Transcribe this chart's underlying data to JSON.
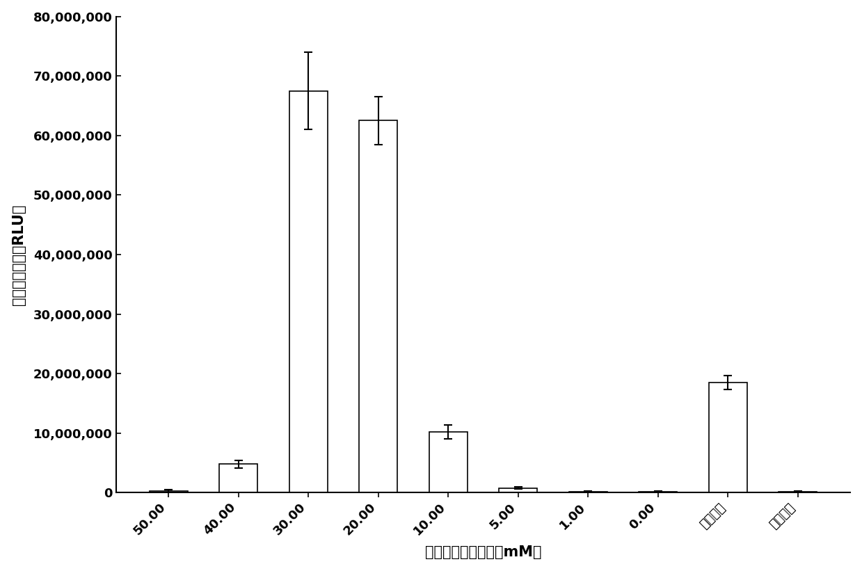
{
  "categories": [
    "50.00",
    "40.00",
    "30.00",
    "20.00",
    "10.00",
    "5.00",
    "1.00",
    "0.00",
    "阳性对照",
    "阴性对照"
  ],
  "values": [
    300000,
    4800000,
    67500000,
    62500000,
    10200000,
    800000,
    200000,
    200000,
    18500000,
    200000
  ],
  "errors": [
    200000,
    600000,
    6500000,
    4000000,
    1200000,
    200000,
    100000,
    100000,
    1200000,
    100000
  ],
  "bar_color": "#ffffff",
  "bar_edgecolor": "#000000",
  "ylabel": "相对光单位值（RLU）",
  "xlabel": "不同的磷酸馔浓度（mM）",
  "ylim": [
    0,
    80000000
  ],
  "yticks": [
    0,
    10000000,
    20000000,
    30000000,
    40000000,
    50000000,
    60000000,
    70000000,
    80000000
  ],
  "ytick_labels": [
    "0",
    "10,000,000",
    "20,000,000",
    "30,000,000",
    "40,000,000",
    "50,000,000",
    "60,000,000",
    "70,000,000",
    "80,000,000"
  ],
  "background_color": "#ffffff",
  "capsize": 4,
  "bar_width": 0.55,
  "xlabel_fontsize": 15,
  "ylabel_fontsize": 15,
  "tick_fontsize": 13,
  "font_weight": "bold"
}
